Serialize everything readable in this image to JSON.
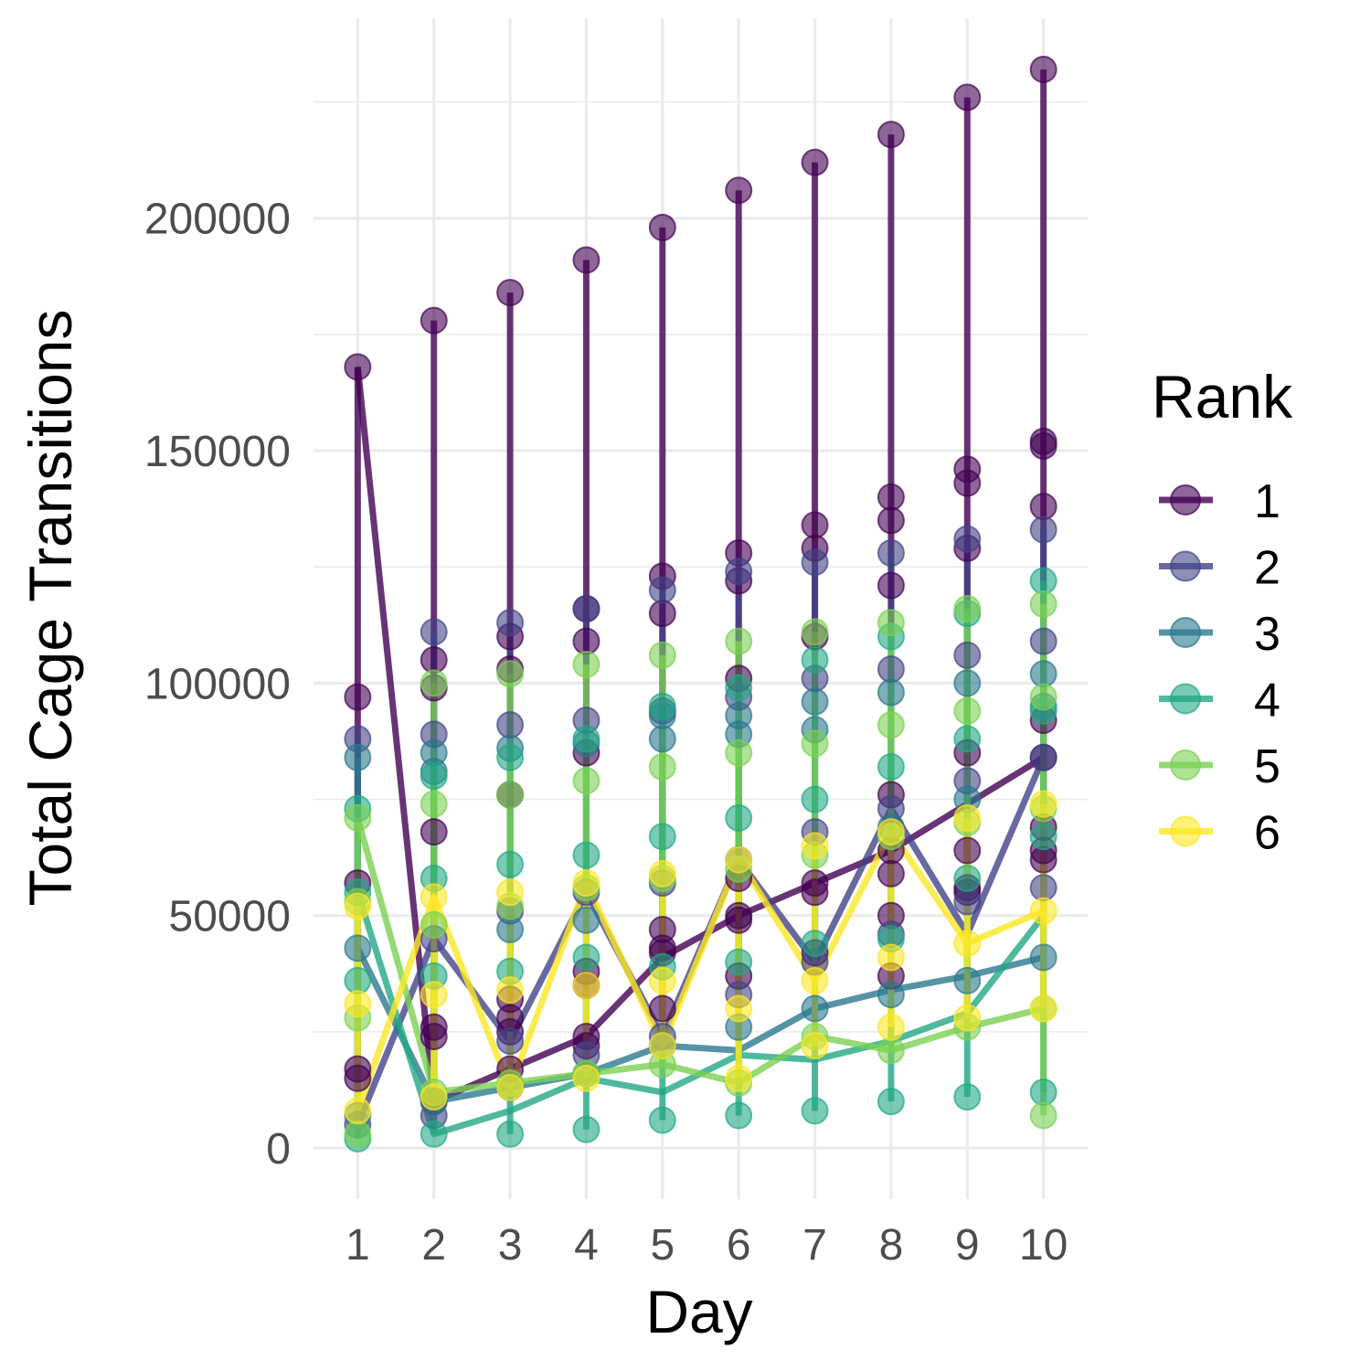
{
  "chart_data": {
    "type": "line",
    "xlabel": "Day",
    "ylabel": "Total Cage Transitions",
    "xlim": [
      0.42,
      10.58
    ],
    "ylim": [
      -11000,
      243000
    ],
    "x_ticks": [
      "1",
      "2",
      "3",
      "4",
      "5",
      "6",
      "7",
      "8",
      "9",
      "10"
    ],
    "y_ticks": [
      0,
      50000,
      100000,
      150000,
      200000
    ],
    "y_tick_labels": [
      "0",
      "50000",
      "100000",
      "150000",
      "200000"
    ],
    "grid": true,
    "legend": {
      "title": "Rank",
      "placement": "right",
      "entries": [
        "1",
        "2",
        "3",
        "4",
        "5",
        "6"
      ]
    },
    "series": [
      {
        "name": "1",
        "color": "#440154",
        "points": [
          [
            1,
            168000
          ],
          [
            1,
            97000
          ],
          [
            1,
            57000
          ],
          [
            1,
            17000
          ],
          [
            1,
            15000
          ],
          [
            2,
            178000
          ],
          [
            2,
            105000
          ],
          [
            2,
            99000
          ],
          [
            2,
            68000
          ],
          [
            2,
            26000
          ],
          [
            2,
            24000
          ],
          [
            2,
            10000
          ],
          [
            3,
            184000
          ],
          [
            3,
            110000
          ],
          [
            3,
            103000
          ],
          [
            3,
            76000
          ],
          [
            3,
            32000
          ],
          [
            3,
            28000
          ],
          [
            3,
            25000
          ],
          [
            3,
            17000
          ],
          [
            4,
            191000
          ],
          [
            4,
            116000
          ],
          [
            4,
            109000
          ],
          [
            4,
            85000
          ],
          [
            4,
            38000
          ],
          [
            4,
            35000
          ],
          [
            4,
            24000
          ],
          [
            4,
            22000
          ],
          [
            5,
            198000
          ],
          [
            5,
            123000
          ],
          [
            5,
            115000
          ],
          [
            5,
            47000
          ],
          [
            5,
            43000
          ],
          [
            5,
            42000
          ],
          [
            5,
            30000
          ],
          [
            6,
            206000
          ],
          [
            6,
            128000
          ],
          [
            6,
            122000
          ],
          [
            6,
            101000
          ],
          [
            6,
            58000
          ],
          [
            6,
            50000
          ],
          [
            6,
            49000
          ],
          [
            6,
            37000
          ],
          [
            7,
            212000
          ],
          [
            7,
            134000
          ],
          [
            7,
            129000
          ],
          [
            7,
            110000
          ],
          [
            7,
            57000
          ],
          [
            7,
            55000
          ],
          [
            7,
            42000
          ],
          [
            8,
            218000
          ],
          [
            8,
            140000
          ],
          [
            8,
            135000
          ],
          [
            8,
            121000
          ],
          [
            8,
            76000
          ],
          [
            8,
            64000
          ],
          [
            8,
            59000
          ],
          [
            8,
            50000
          ],
          [
            8,
            37000
          ],
          [
            9,
            226000
          ],
          [
            9,
            146000
          ],
          [
            9,
            143000
          ],
          [
            9,
            129000
          ],
          [
            9,
            85000
          ],
          [
            9,
            64000
          ],
          [
            9,
            56000
          ],
          [
            9,
            55000
          ],
          [
            10,
            232000
          ],
          [
            10,
            152000
          ],
          [
            10,
            151000
          ],
          [
            10,
            138000
          ],
          [
            10,
            92000
          ],
          [
            10,
            69000
          ],
          [
            10,
            64000
          ],
          [
            10,
            62000
          ],
          [
            10,
            84000
          ]
        ],
        "trend": [
          168000,
          10000,
          17000,
          24000,
          41000,
          50000,
          57000,
          64000,
          74000,
          84000
        ]
      },
      {
        "name": "2",
        "color": "#414487",
        "points": [
          [
            1,
            88000
          ],
          [
            1,
            5000
          ],
          [
            2,
            111000
          ],
          [
            2,
            89000
          ],
          [
            2,
            45000
          ],
          [
            2,
            7000
          ],
          [
            3,
            113000
          ],
          [
            3,
            91000
          ],
          [
            3,
            51000
          ],
          [
            3,
            23000
          ],
          [
            4,
            116000
          ],
          [
            4,
            92000
          ],
          [
            4,
            55000
          ],
          [
            4,
            20000
          ],
          [
            5,
            120000
          ],
          [
            5,
            94000
          ],
          [
            5,
            57000
          ],
          [
            5,
            24000
          ],
          [
            6,
            124000
          ],
          [
            6,
            97000
          ],
          [
            6,
            62000
          ],
          [
            6,
            33000
          ],
          [
            7,
            126000
          ],
          [
            7,
            101000
          ],
          [
            7,
            68000
          ],
          [
            7,
            40000
          ],
          [
            8,
            128000
          ],
          [
            8,
            103000
          ],
          [
            8,
            73000
          ],
          [
            8,
            46000
          ],
          [
            9,
            131000
          ],
          [
            9,
            106000
          ],
          [
            9,
            79000
          ],
          [
            9,
            53000
          ],
          [
            10,
            133000
          ],
          [
            10,
            109000
          ],
          [
            10,
            84000
          ],
          [
            10,
            56000
          ]
        ],
        "trend": [
          5000,
          45000,
          23000,
          55000,
          24000,
          62000,
          40000,
          73000,
          46000,
          84000
        ]
      },
      {
        "name": "3",
        "color": "#2A788E",
        "points": [
          [
            1,
            84000
          ],
          [
            1,
            43000
          ],
          [
            1,
            7000
          ],
          [
            2,
            85000
          ],
          [
            2,
            81000
          ],
          [
            2,
            10000
          ],
          [
            3,
            86000
          ],
          [
            3,
            47000
          ],
          [
            3,
            13000
          ],
          [
            4,
            87000
          ],
          [
            4,
            49000
          ],
          [
            4,
            16000
          ],
          [
            5,
            93000
          ],
          [
            5,
            88000
          ],
          [
            5,
            22000
          ],
          [
            6,
            93000
          ],
          [
            6,
            89000
          ],
          [
            6,
            26000
          ],
          [
            7,
            96000
          ],
          [
            7,
            90000
          ],
          [
            7,
            30000
          ],
          [
            8,
            98000
          ],
          [
            8,
            69000
          ],
          [
            8,
            33000
          ],
          [
            9,
            100000
          ],
          [
            9,
            75000
          ],
          [
            9,
            36000
          ],
          [
            10,
            102000
          ],
          [
            10,
            95000
          ],
          [
            10,
            41000
          ]
        ],
        "trend": [
          43000,
          10000,
          13000,
          16000,
          22000,
          21000,
          30000,
          34000,
          37000,
          41000
        ]
      },
      {
        "name": "4",
        "color": "#22A884",
        "points": [
          [
            1,
            73000
          ],
          [
            1,
            55000
          ],
          [
            1,
            36000
          ],
          [
            1,
            2000
          ],
          [
            2,
            80000
          ],
          [
            2,
            58000
          ],
          [
            2,
            37000
          ],
          [
            2,
            3000
          ],
          [
            3,
            84000
          ],
          [
            3,
            61000
          ],
          [
            3,
            38000
          ],
          [
            3,
            3000
          ],
          [
            4,
            88000
          ],
          [
            4,
            63000
          ],
          [
            4,
            41000
          ],
          [
            4,
            4000
          ],
          [
            5,
            95000
          ],
          [
            5,
            67000
          ],
          [
            5,
            39000
          ],
          [
            5,
            6000
          ],
          [
            6,
            99000
          ],
          [
            6,
            71000
          ],
          [
            6,
            40000
          ],
          [
            6,
            7000
          ],
          [
            7,
            105000
          ],
          [
            7,
            75000
          ],
          [
            7,
            44000
          ],
          [
            7,
            8000
          ],
          [
            8,
            110000
          ],
          [
            8,
            82000
          ],
          [
            8,
            45000
          ],
          [
            8,
            10000
          ],
          [
            9,
            115000
          ],
          [
            9,
            88000
          ],
          [
            9,
            58000
          ],
          [
            9,
            11000
          ],
          [
            10,
            122000
          ],
          [
            10,
            94000
          ],
          [
            10,
            67000
          ],
          [
            10,
            12000
          ]
        ],
        "trend": [
          55000,
          3000,
          8000,
          15000,
          12000,
          20000,
          19000,
          23000,
          29000,
          50000
        ]
      },
      {
        "name": "5",
        "color": "#7AD151",
        "points": [
          [
            1,
            71000
          ],
          [
            1,
            53000
          ],
          [
            1,
            28000
          ],
          [
            1,
            3000
          ],
          [
            2,
            100000
          ],
          [
            2,
            74000
          ],
          [
            2,
            48000
          ],
          [
            2,
            12000
          ],
          [
            3,
            102000
          ],
          [
            3,
            76000
          ],
          [
            3,
            52000
          ],
          [
            3,
            14000
          ],
          [
            4,
            104000
          ],
          [
            4,
            79000
          ],
          [
            4,
            56000
          ],
          [
            4,
            16000
          ],
          [
            5,
            106000
          ],
          [
            5,
            82000
          ],
          [
            5,
            58000
          ],
          [
            5,
            18000
          ],
          [
            6,
            109000
          ],
          [
            6,
            85000
          ],
          [
            6,
            60000
          ],
          [
            6,
            14000
          ],
          [
            7,
            111000
          ],
          [
            7,
            87000
          ],
          [
            7,
            63000
          ],
          [
            7,
            24000
          ],
          [
            8,
            113000
          ],
          [
            8,
            91000
          ],
          [
            8,
            67000
          ],
          [
            8,
            21000
          ],
          [
            9,
            116000
          ],
          [
            9,
            94000
          ],
          [
            9,
            70000
          ],
          [
            9,
            26000
          ],
          [
            10,
            117000
          ],
          [
            10,
            97000
          ],
          [
            10,
            73000
          ],
          [
            10,
            30000
          ],
          [
            10,
            7000
          ]
        ],
        "trend": [
          71000,
          12000,
          14000,
          16000,
          18000,
          14000,
          24000,
          21000,
          26000,
          30000
        ]
      },
      {
        "name": "6",
        "color": "#FDE725",
        "points": [
          [
            1,
            52000
          ],
          [
            1,
            31000
          ],
          [
            1,
            8000
          ],
          [
            2,
            54000
          ],
          [
            2,
            33000
          ],
          [
            2,
            11000
          ],
          [
            3,
            55000
          ],
          [
            3,
            34000
          ],
          [
            3,
            13000
          ],
          [
            4,
            57000
          ],
          [
            4,
            35000
          ],
          [
            4,
            15000
          ],
          [
            5,
            59000
          ],
          [
            5,
            36000
          ],
          [
            5,
            22000
          ],
          [
            6,
            62000
          ],
          [
            6,
            30000
          ],
          [
            6,
            15000
          ],
          [
            7,
            65000
          ],
          [
            7,
            36000
          ],
          [
            7,
            22000
          ],
          [
            8,
            68000
          ],
          [
            8,
            41000
          ],
          [
            8,
            26000
          ],
          [
            9,
            71000
          ],
          [
            9,
            44000
          ],
          [
            9,
            28000
          ],
          [
            10,
            74000
          ],
          [
            10,
            51000
          ],
          [
            10,
            30000
          ]
        ],
        "trend": [
          8000,
          54000,
          13000,
          57000,
          22000,
          62000,
          36000,
          68000,
          44000,
          51000
        ]
      }
    ]
  }
}
